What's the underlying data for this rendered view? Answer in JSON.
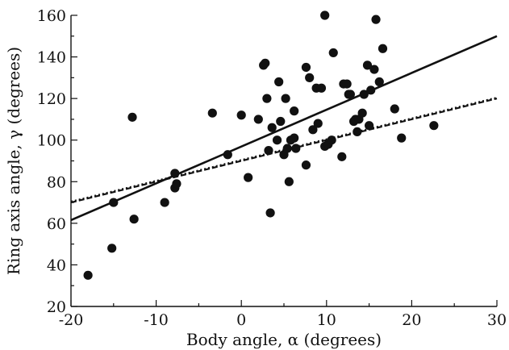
{
  "chart_data": {
    "type": "scatter",
    "xlabel": "Body angle, α (degrees)",
    "ylabel": "Ring axis angle, γ (degrees)",
    "xlim": [
      -20,
      30
    ],
    "ylim": [
      20,
      160
    ],
    "xticks": [
      -20,
      -10,
      0,
      10,
      20,
      30
    ],
    "yticks": [
      20,
      40,
      60,
      80,
      100,
      120,
      140,
      160
    ],
    "xtick_labels": [
      "-20",
      "-10",
      "0",
      "10",
      "20",
      "30"
    ],
    "ytick_labels": [
      "20",
      "40",
      "60",
      "80",
      "100",
      "120",
      "140",
      "160"
    ],
    "grid": false,
    "series": [
      {
        "type": "scatter",
        "color": "#111111",
        "points": [
          [
            -18,
            35
          ],
          [
            -15.2,
            48
          ],
          [
            -15,
            70
          ],
          [
            -12.8,
            111
          ],
          [
            -12.6,
            62
          ],
          [
            -9,
            70
          ],
          [
            -7.8,
            84
          ],
          [
            -7.8,
            77
          ],
          [
            -7.6,
            79
          ],
          [
            -3.4,
            113
          ],
          [
            -1.6,
            93
          ],
          [
            0,
            112
          ],
          [
            0.8,
            82
          ],
          [
            2,
            110
          ],
          [
            2.6,
            136
          ],
          [
            2.8,
            137
          ],
          [
            3,
            120
          ],
          [
            3.2,
            95
          ],
          [
            3.4,
            65
          ],
          [
            3.6,
            106
          ],
          [
            4.2,
            100
          ],
          [
            4.4,
            128
          ],
          [
            4.6,
            109
          ],
          [
            5,
            93
          ],
          [
            5.2,
            120
          ],
          [
            5.4,
            96
          ],
          [
            5.6,
            80
          ],
          [
            5.8,
            100
          ],
          [
            6.2,
            114
          ],
          [
            6.2,
            101
          ],
          [
            6.4,
            96
          ],
          [
            7.6,
            88
          ],
          [
            7.6,
            135
          ],
          [
            8,
            130
          ],
          [
            8.4,
            105
          ],
          [
            8.8,
            125
          ],
          [
            9,
            108
          ],
          [
            9.4,
            125
          ],
          [
            9.8,
            160
          ],
          [
            9.8,
            97
          ],
          [
            10.2,
            98
          ],
          [
            10.6,
            100
          ],
          [
            10.8,
            142
          ],
          [
            11.8,
            92
          ],
          [
            12,
            127
          ],
          [
            12.4,
            127
          ],
          [
            12.6,
            122
          ],
          [
            12.8,
            122
          ],
          [
            13.2,
            109
          ],
          [
            13.4,
            110
          ],
          [
            13.6,
            104
          ],
          [
            13.8,
            110
          ],
          [
            14.2,
            113
          ],
          [
            14.4,
            122
          ],
          [
            14.8,
            136
          ],
          [
            15,
            107
          ],
          [
            15.2,
            124
          ],
          [
            15.6,
            134
          ],
          [
            15.8,
            158
          ],
          [
            16.2,
            128
          ],
          [
            16.6,
            144
          ],
          [
            18,
            115
          ],
          [
            18.8,
            101
          ],
          [
            22.6,
            107
          ]
        ]
      },
      {
        "type": "line",
        "style": "solid",
        "color": "#111111",
        "x": [
          -20,
          30
        ],
        "y": [
          61.5,
          150
        ]
      },
      {
        "type": "line",
        "style": "dashed",
        "color": "#111111",
        "x": [
          -20,
          30
        ],
        "y": [
          70,
          120
        ]
      },
      {
        "type": "line",
        "style": "dotted",
        "color": "#111111",
        "x": [
          -20,
          30
        ],
        "y": [
          70.5,
          120.5
        ]
      }
    ]
  }
}
